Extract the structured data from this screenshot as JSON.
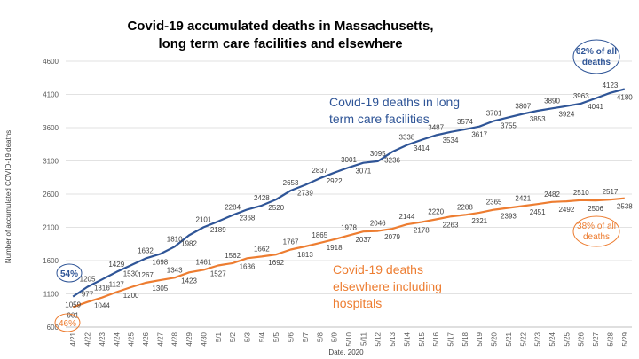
{
  "chart_data": {
    "type": "line",
    "title_lines": [
      "Covid-19 accumulated deaths in Massachusetts,",
      "long term care facilities and elsewhere"
    ],
    "xlabel": "Date, 2020",
    "ylabel": "Number of accumulated COVID-19 deaths",
    "ylim": [
      600,
      4600
    ],
    "yticks": [
      600,
      1100,
      1600,
      2100,
      2600,
      3100,
      3600,
      4100,
      4600
    ],
    "grid": true,
    "categories": [
      "4/21",
      "4/22",
      "4/23",
      "4/24",
      "4/25",
      "4/26",
      "4/27",
      "4/28",
      "4/29",
      "4/30",
      "5/1",
      "5/2",
      "5/3",
      "5/4",
      "5/5",
      "5/6",
      "5/7",
      "5/8",
      "5/9",
      "5/10",
      "5/11",
      "5/12",
      "5/13",
      "5/14",
      "5/15",
      "5/16",
      "5/17",
      "5/18",
      "5/19",
      "5/20",
      "5/21",
      "5/22",
      "5/23",
      "5/24",
      "5/25",
      "5/26",
      "5/27",
      "5/28",
      "5/29"
    ],
    "series": [
      {
        "key": "ltc",
        "color": "#2F5597",
        "values": [
          1059,
          1205,
          1316,
          1429,
          1530,
          1632,
          1698,
          1810,
          1982,
          2101,
          2189,
          2284,
          2368,
          2428,
          2520,
          2653,
          2739,
          2837,
          2922,
          3001,
          3071,
          3095,
          3236,
          3338,
          3414,
          3487,
          3534,
          3574,
          3617,
          3701,
          3755,
          3807,
          3853,
          3890,
          3924,
          3963,
          4041,
          4123,
          4180
        ]
      },
      {
        "key": "other",
        "color": "#ED7D31",
        "values": [
          901,
          977,
          1044,
          1127,
          1200,
          1267,
          1305,
          1343,
          1423,
          1461,
          1527,
          1562,
          1636,
          1662,
          1692,
          1767,
          1813,
          1865,
          1918,
          1978,
          2037,
          2046,
          2079,
          2144,
          2178,
          2220,
          2263,
          2288,
          2321,
          2365,
          2393,
          2421,
          2451,
          2482,
          2492,
          2510,
          2506,
          2517,
          2538
        ]
      }
    ],
    "annotations": [
      {
        "key": "ltc_label",
        "lines": [
          "Covid-19 deaths in long",
          "term care facilities"
        ],
        "color": "#2F5597"
      },
      {
        "key": "other_label",
        "lines": [
          "Covid-19 deaths",
          "elsewhere including",
          "hospitals"
        ],
        "color": "#ED7D31"
      },
      {
        "key": "ltc_end_pct",
        "lines": [
          "62% of all",
          "deaths"
        ],
        "color": "#2F5597"
      },
      {
        "key": "other_end_pct",
        "lines": [
          "38% of all",
          "deaths"
        ],
        "color": "#ED7D31"
      },
      {
        "key": "ltc_start_pct",
        "lines": [
          "54%"
        ],
        "color": "#2F5597"
      },
      {
        "key": "other_start_pct",
        "lines": [
          "46%"
        ],
        "color": "#ED7D31"
      }
    ]
  }
}
